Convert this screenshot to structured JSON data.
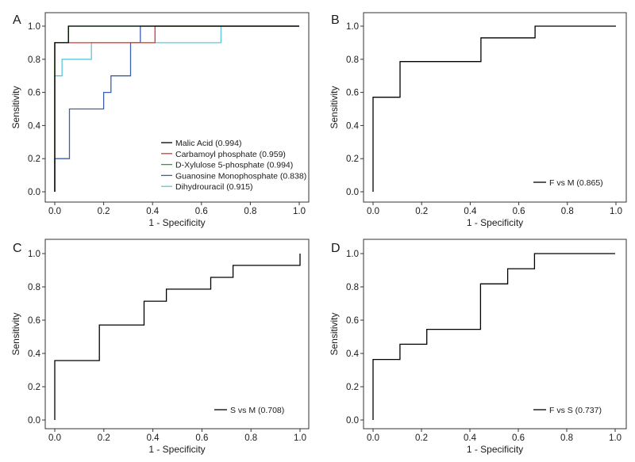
{
  "chart_data": [
    {
      "panel": "A",
      "type": "line",
      "xlabel": "1 - Specificity",
      "ylabel": "Sensitivity",
      "xlim": [
        0,
        1
      ],
      "ylim": [
        0,
        1
      ],
      "xticks": [
        "0.0",
        "0.2",
        "0.4",
        "0.6",
        "0.8",
        "1.0"
      ],
      "yticks": [
        "0.0",
        "0.2",
        "0.4",
        "0.6",
        "0.8",
        "1.0"
      ],
      "legend_position": "bottom-right",
      "grid": false,
      "series": [
        {
          "name": "Malic Acid (0.994)",
          "color": "#000000",
          "x": [
            0,
            0,
            0.056,
            0.056,
            1
          ],
          "y": [
            0,
            0.9,
            0.9,
            1.0,
            1.0
          ]
        },
        {
          "name": "Carbamoyl phosphate (0.959)",
          "color": "#e0352b",
          "x": [
            0,
            0,
            0.15,
            0.15,
            0.41,
            0.41,
            1
          ],
          "y": [
            0,
            0.9,
            0.9,
            0.9,
            0.9,
            1.0,
            1.0
          ]
        },
        {
          "name": "D-Xylulose 5-phosphate (0.994)",
          "color": "#2ca02c",
          "x": [
            0,
            0,
            0.056,
            0.056,
            1
          ],
          "y": [
            0,
            0.9,
            0.9,
            1.0,
            1.0
          ]
        },
        {
          "name": "Guanosine Monophosphate (0.838)",
          "color": "#3a5fad",
          "x": [
            0,
            0,
            0.06,
            0.06,
            0.2,
            0.2,
            0.23,
            0.23,
            0.31,
            0.31,
            0.35,
            0.35,
            1
          ],
          "y": [
            0,
            0.2,
            0.2,
            0.5,
            0.5,
            0.6,
            0.6,
            0.7,
            0.7,
            0.9,
            0.9,
            1.0,
            1.0
          ]
        },
        {
          "name": "Dihydrouracil (0.915)",
          "color": "#5bc8d6",
          "x": [
            0,
            0,
            0.03,
            0.03,
            0.15,
            0.15,
            0.68,
            0.68,
            1
          ],
          "y": [
            0,
            0.7,
            0.7,
            0.8,
            0.8,
            0.9,
            0.9,
            1.0,
            1.0
          ]
        }
      ]
    },
    {
      "panel": "B",
      "type": "line",
      "xlabel": "1 - Specificity",
      "ylabel": "Sensitivity",
      "xlim": [
        0,
        1
      ],
      "ylim": [
        0,
        1
      ],
      "xticks": [
        "0.0",
        "0.2",
        "0.4",
        "0.6",
        "0.8",
        "1.0"
      ],
      "yticks": [
        "0.0",
        "0.2",
        "0.4",
        "0.6",
        "0.8",
        "1.0"
      ],
      "legend_position": "bottom-right",
      "grid": false,
      "series": [
        {
          "name": "F vs M (0.865)",
          "color": "#000000",
          "x": [
            0,
            0,
            0.111,
            0.111,
            0.444,
            0.444,
            0.667,
            0.667,
            1
          ],
          "y": [
            0,
            0.571,
            0.571,
            0.786,
            0.786,
            0.929,
            0.929,
            1.0,
            1.0
          ]
        }
      ]
    },
    {
      "panel": "C",
      "type": "line",
      "xlabel": "1 - Specificity",
      "ylabel": "Sensitivity",
      "xlim": [
        0,
        1
      ],
      "ylim": [
        0,
        1
      ],
      "xticks": [
        "0.0",
        "0.2",
        "0.4",
        "0.6",
        "0.8",
        "1.0"
      ],
      "yticks": [
        "0.0",
        "0.2",
        "0.4",
        "0.6",
        "0.8",
        "1.0"
      ],
      "legend_position": "bottom-right",
      "grid": false,
      "series": [
        {
          "name": "S vs M (0.708)",
          "color": "#000000",
          "x": [
            0,
            0,
            0.182,
            0.182,
            0.364,
            0.364,
            0.455,
            0.455,
            0.636,
            0.636,
            0.727,
            0.727,
            1.0,
            1.0
          ],
          "y": [
            0,
            0.357,
            0.357,
            0.571,
            0.571,
            0.714,
            0.714,
            0.786,
            0.786,
            0.857,
            0.857,
            0.929,
            0.929,
            1.0
          ]
        }
      ]
    },
    {
      "panel": "D",
      "type": "line",
      "xlabel": "1 - Specificity",
      "ylabel": "Sensitivity",
      "xlim": [
        0,
        1
      ],
      "ylim": [
        0,
        1
      ],
      "xticks": [
        "0.0",
        "0.2",
        "0.4",
        "0.6",
        "0.8",
        "1.0"
      ],
      "yticks": [
        "0.0",
        "0.2",
        "0.4",
        "0.6",
        "0.8",
        "1.0"
      ],
      "legend_position": "bottom-right",
      "grid": false,
      "series": [
        {
          "name": "F vs S (0.737)",
          "color": "#000000",
          "x": [
            0,
            0,
            0.111,
            0.111,
            0.222,
            0.222,
            0.444,
            0.444,
            0.556,
            0.556,
            0.667,
            0.667,
            1
          ],
          "y": [
            0,
            0.364,
            0.364,
            0.455,
            0.455,
            0.545,
            0.545,
            0.818,
            0.818,
            0.909,
            0.909,
            1.0,
            1.0
          ]
        }
      ]
    }
  ]
}
